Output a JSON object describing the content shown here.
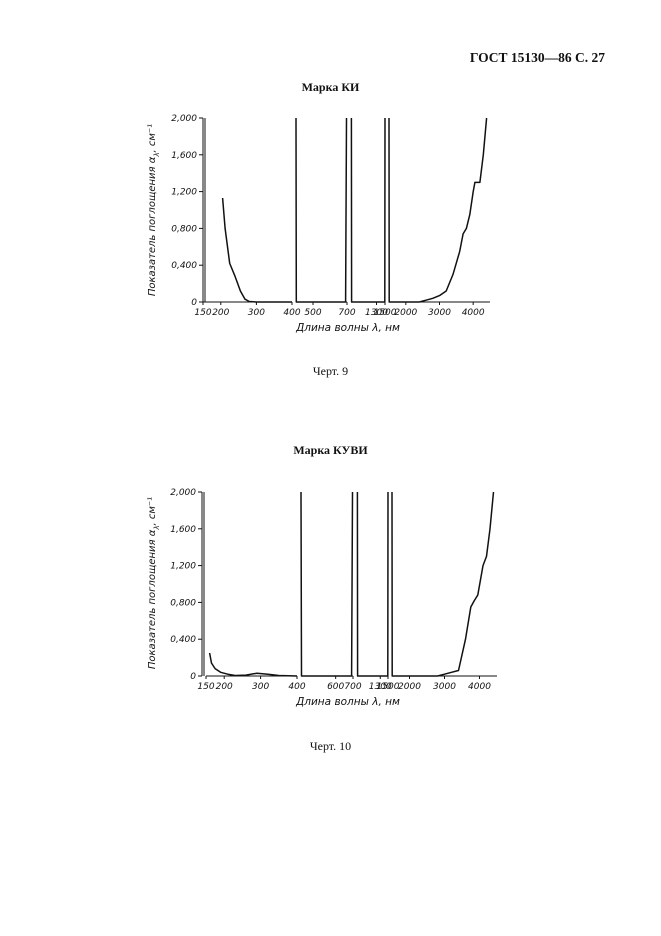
{
  "page": {
    "header": "ГОСТ 15130—86 С. 27"
  },
  "chart_data": [
    {
      "type": "line",
      "title": "Марка КИ",
      "caption": "Черт. 9",
      "xlabel": "Длина волны λ, нм",
      "ylabel": "Показатель поглощения α",
      "ylabel_sub": "λ",
      "ylabel_unit": ", см⁻¹",
      "ylim": [
        0,
        2.0
      ],
      "yticks": [
        0,
        0.4,
        0.8,
        1.2,
        1.6,
        2.0
      ],
      "ytick_labels": [
        "0",
        "0,400",
        "0,800",
        "1,200",
        "1,600",
        "2,000"
      ],
      "grid": false,
      "x_segments": [
        {
          "range": [
            150,
            400
          ],
          "ticks": [
            150,
            200,
            300,
            400
          ],
          "tick_labels": [
            "150",
            "200",
            "300",
            "400"
          ]
        },
        {
          "range": [
            400,
            700
          ],
          "ticks": [
            500,
            700
          ],
          "tick_labels": [
            "500",
            "700"
          ]
        },
        {
          "range": [
            700,
            1500
          ],
          "ticks": [
            1300,
            1500
          ],
          "tick_labels": [
            "1300",
            "1500"
          ]
        },
        {
          "range": [
            1500,
            4500
          ],
          "ticks": [
            2000,
            3000,
            4000
          ],
          "tick_labels": [
            "2000",
            "3000",
            "4000"
          ]
        }
      ],
      "series": [
        {
          "segment": 0,
          "points": [
            [
              205,
              1.13
            ],
            [
              212,
              0.8
            ],
            [
              225,
              0.42
            ],
            [
              240,
              0.28
            ],
            [
              255,
              0.12
            ],
            [
              268,
              0.03
            ],
            [
              280,
              0.005
            ],
            [
              300,
              0
            ],
            [
              400,
              0
            ]
          ]
        },
        {
          "segment": 1,
          "points": [
            [
              400,
              2.0
            ],
            [
              402,
              0.0
            ],
            [
              500,
              0
            ],
            [
              692,
              0
            ],
            [
              697,
              2.0
            ]
          ]
        },
        {
          "segment": 2,
          "points": [
            [
              710,
              2.0
            ],
            [
              715,
              0
            ],
            [
              1300,
              0
            ],
            [
              1495,
              0
            ],
            [
              1500,
              2.0
            ]
          ]
        },
        {
          "segment": 3,
          "points": [
            [
              1500,
              2.0
            ],
            [
              1505,
              0
            ],
            [
              2000,
              0
            ],
            [
              2400,
              0
            ],
            [
              2600,
              0.02
            ],
            [
              2800,
              0.04
            ],
            [
              3000,
              0.07
            ],
            [
              3200,
              0.12
            ],
            [
              3400,
              0.3
            ],
            [
              3600,
              0.55
            ],
            [
              3700,
              0.74
            ],
            [
              3800,
              0.8
            ],
            [
              3900,
              0.95
            ],
            [
              4000,
              1.2
            ],
            [
              4050,
              1.3
            ],
            [
              4200,
              1.3
            ],
            [
              4300,
              1.6
            ],
            [
              4400,
              2.0
            ]
          ]
        }
      ]
    },
    {
      "type": "line",
      "title": "Марка КУВИ",
      "caption": "Черт. 10",
      "xlabel": "Длина волны λ, нм",
      "ylabel": "Показатель поглощения α",
      "ylabel_sub": "λ",
      "ylabel_unit": ", см⁻¹",
      "ylim": [
        0,
        2.0
      ],
      "yticks": [
        0,
        0.4,
        0.8,
        1.2,
        1.6,
        2.0
      ],
      "ytick_labels": [
        "0",
        "0,400",
        "0,800",
        "1,200",
        "1,600",
        "2,000"
      ],
      "grid": false,
      "x_segments": [
        {
          "range": [
            150,
            400
          ],
          "ticks": [
            150,
            200,
            300,
            400
          ],
          "tick_labels": [
            "150",
            "200",
            "300",
            "400"
          ]
        },
        {
          "range": [
            400,
            700
          ],
          "ticks": [
            600,
            700
          ],
          "tick_labels": [
            "600",
            "700"
          ]
        },
        {
          "range": [
            700,
            1500
          ],
          "ticks": [
            1300,
            1500
          ],
          "tick_labels": [
            "1300",
            "1500"
          ]
        },
        {
          "range": [
            1500,
            4500
          ],
          "ticks": [
            2000,
            3000,
            4000
          ],
          "tick_labels": [
            "2000",
            "3000",
            "4000"
          ]
        }
      ],
      "series": [
        {
          "segment": 0,
          "points": [
            [
              160,
              0.25
            ],
            [
              165,
              0.14
            ],
            [
              175,
              0.08
            ],
            [
              190,
              0.04
            ],
            [
              210,
              0.02
            ],
            [
              230,
              0.005
            ],
            [
              260,
              0.01
            ],
            [
              290,
              0.03
            ],
            [
              320,
              0.02
            ],
            [
              350,
              0.005
            ],
            [
              400,
              0
            ]
          ]
        },
        {
          "segment": 1,
          "points": [
            [
              400,
              2.0
            ],
            [
              403,
              0
            ],
            [
              600,
              0
            ],
            [
              692,
              0
            ],
            [
              697,
              2.0
            ]
          ]
        },
        {
          "segment": 2,
          "points": [
            [
              710,
              2.0
            ],
            [
              715,
              0
            ],
            [
              1300,
              0
            ],
            [
              1495,
              0
            ],
            [
              1500,
              2.0
            ]
          ]
        },
        {
          "segment": 3,
          "points": [
            [
              1500,
              2.0
            ],
            [
              1505,
              0
            ],
            [
              2000,
              0
            ],
            [
              2800,
              0
            ],
            [
              3000,
              0.02
            ],
            [
              3200,
              0.04
            ],
            [
              3400,
              0.06
            ],
            [
              3600,
              0.4
            ],
            [
              3750,
              0.75
            ],
            [
              3850,
              0.82
            ],
            [
              3950,
              0.88
            ],
            [
              4100,
              1.2
            ],
            [
              4200,
              1.3
            ],
            [
              4300,
              1.6
            ],
            [
              4400,
              2.0
            ]
          ]
        }
      ]
    }
  ]
}
